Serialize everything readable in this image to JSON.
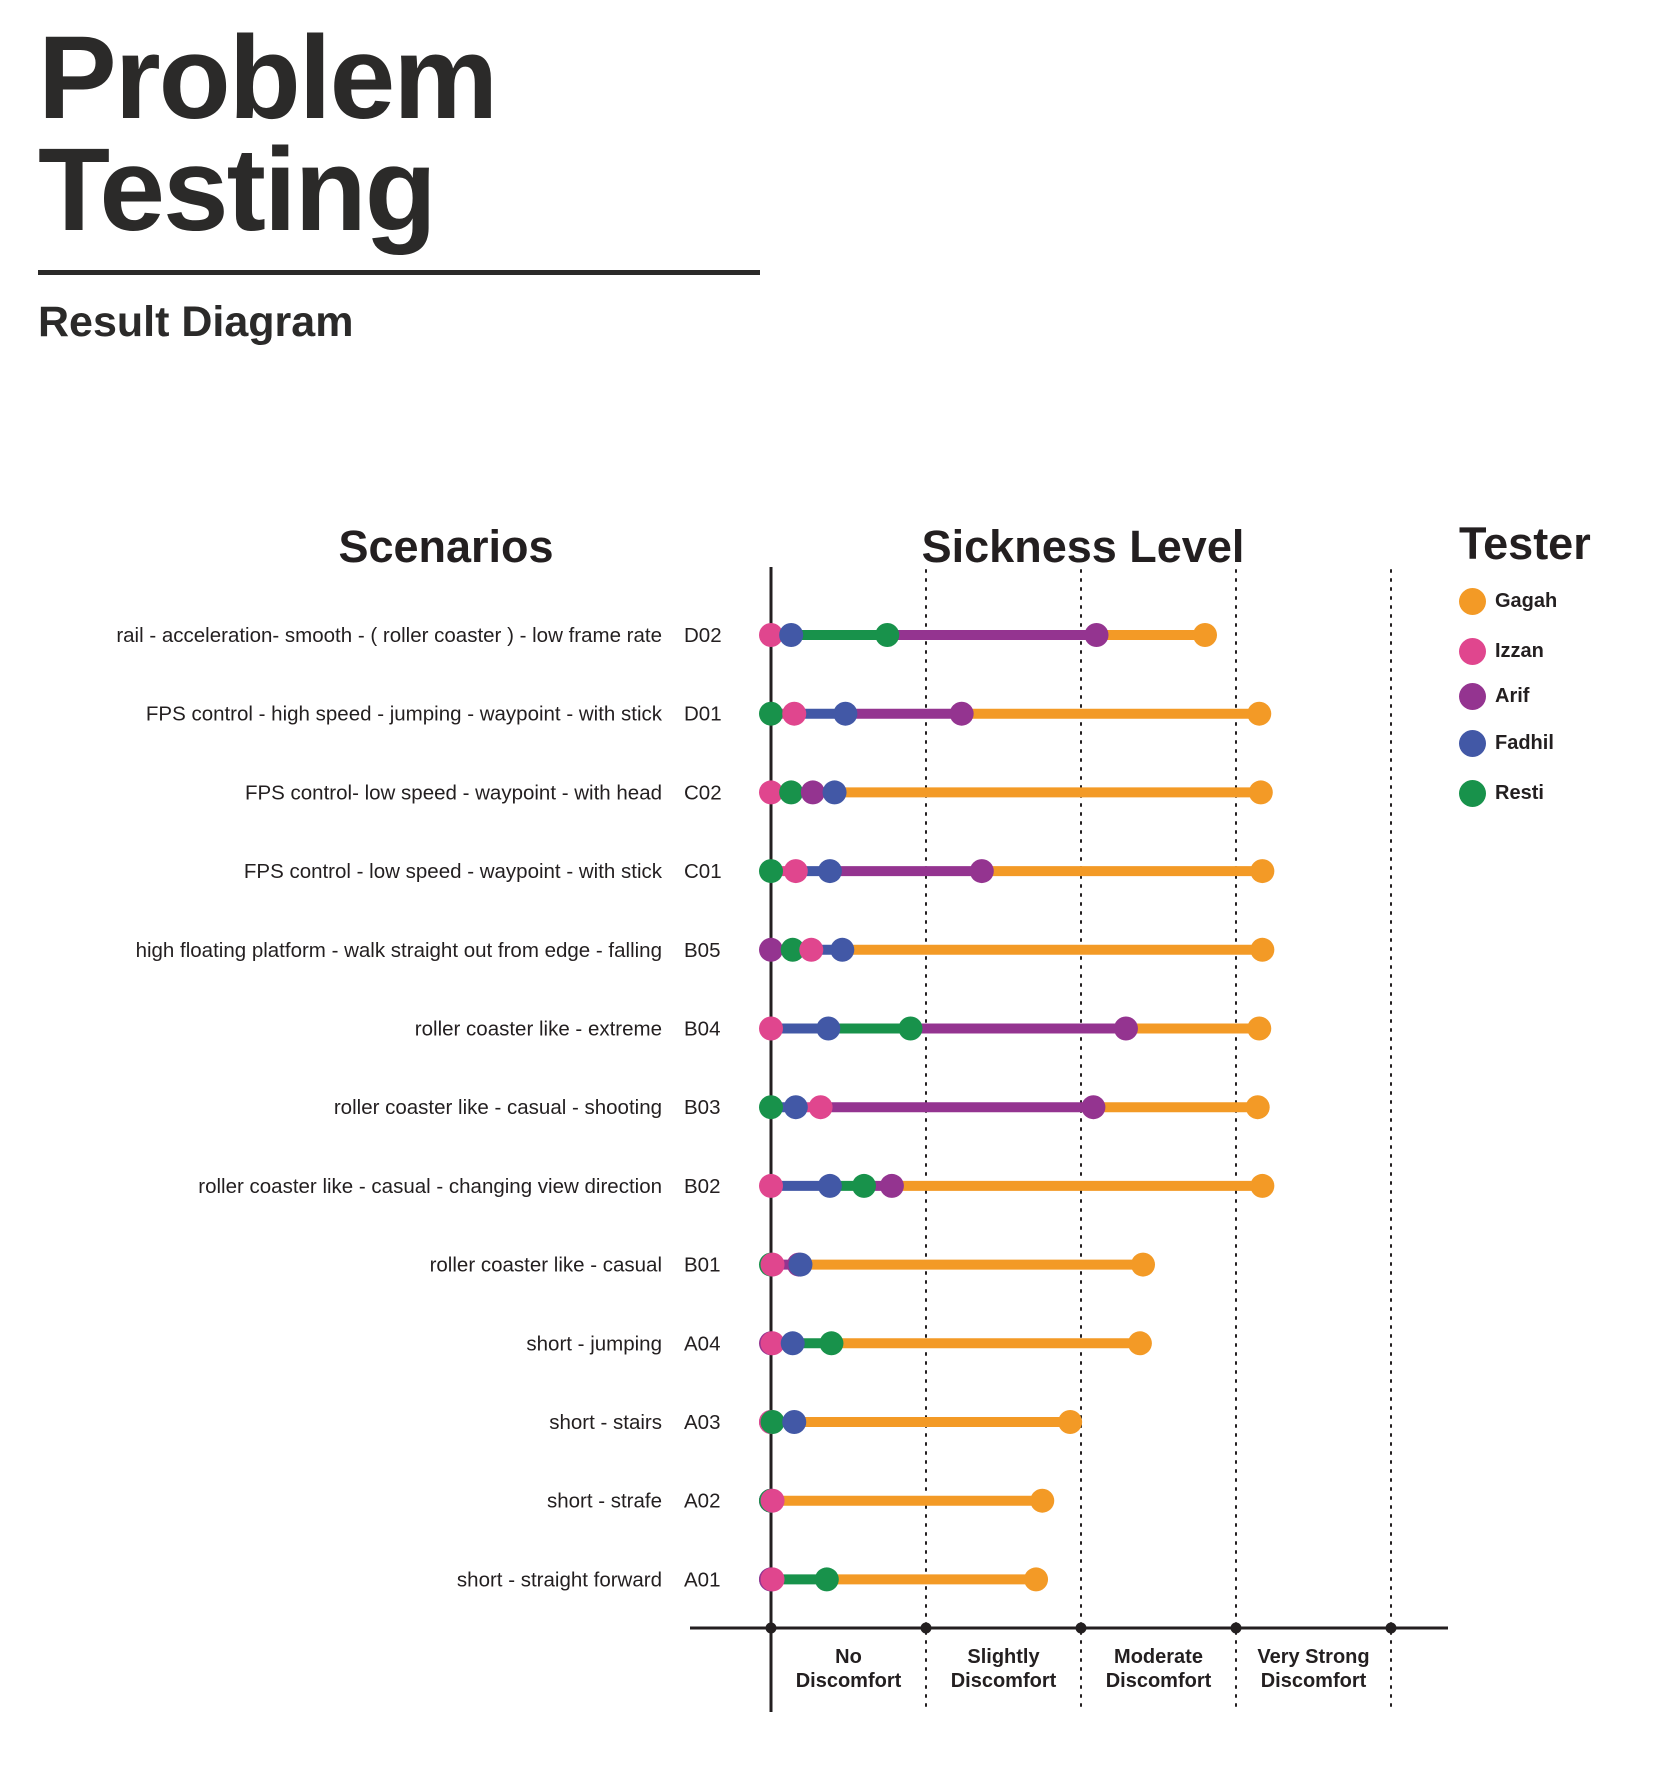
{
  "page": {
    "title_line1": "Problem",
    "title_line2": "Testing",
    "subtitle": "Result Diagram"
  },
  "colors": {
    "Gagah": "#f39a26",
    "Izzan": "#e0468e",
    "Arif": "#943490",
    "Fadhil": "#4258a6",
    "Resti": "#18924b",
    "axis": "#231f20",
    "text": "#231f20"
  },
  "legend": {
    "title": "Tester",
    "items": [
      {
        "name": "Gagah",
        "color": "#f39a26"
      },
      {
        "name": "Izzan",
        "color": "#e0468e"
      },
      {
        "name": "Arif",
        "color": "#943490"
      },
      {
        "name": "Fadhil",
        "color": "#4258a6"
      },
      {
        "name": "Resti",
        "color": "#18924b"
      }
    ]
  },
  "chart_data": {
    "type": "scatter",
    "subtype": "dot-range per scenario",
    "column_headers": {
      "scenarios": "Scenarios",
      "sickness": "Sickness Level"
    },
    "x_categories": [
      "No Discomfort",
      "Slightly Discomfort",
      "Moderate Discomfort",
      "Very Strong Discomfort"
    ],
    "x_category_lines": [
      [
        "No",
        "Discomfort"
      ],
      [
        "Slightly",
        "Discomfort"
      ],
      [
        "Moderate",
        "Discomfort"
      ],
      [
        "Very Strong",
        "Discomfort"
      ]
    ],
    "xlim": [
      0,
      4
    ],
    "gridlines_at": [
      1,
      2,
      3,
      4
    ],
    "series_names": [
      "Gagah",
      "Izzan",
      "Arif",
      "Fadhil",
      "Resti"
    ],
    "scenarios": [
      {
        "code": "D02",
        "label": "rail - acceleration- smooth - ( roller coaster ) - low frame rate",
        "values": {
          "Izzan": 0.0,
          "Fadhil": 0.13,
          "Resti": 0.75,
          "Arif": 2.1,
          "Gagah": 2.8
        }
      },
      {
        "code": "D01",
        "label": "FPS control - high speed - jumping - waypoint - with stick",
        "values": {
          "Resti": 0.0,
          "Izzan": 0.15,
          "Fadhil": 0.48,
          "Arif": 1.23,
          "Gagah": 3.15
        }
      },
      {
        "code": "C02",
        "label": "FPS control- low speed - waypoint - with head",
        "values": {
          "Izzan": 0.0,
          "Resti": 0.13,
          "Arif": 0.27,
          "Fadhil": 0.41,
          "Gagah": 3.16
        }
      },
      {
        "code": "C01",
        "label": "FPS control - low speed - waypoint - with stick",
        "values": {
          "Resti": 0.0,
          "Izzan": 0.16,
          "Fadhil": 0.38,
          "Arif": 1.36,
          "Gagah": 3.17
        }
      },
      {
        "code": "B05",
        "label": "high floating platform - walk straight out from edge - falling",
        "values": {
          "Arif": 0.0,
          "Resti": 0.14,
          "Izzan": 0.26,
          "Fadhil": 0.46,
          "Gagah": 3.17
        }
      },
      {
        "code": "B04",
        "label": "roller coaster like - extreme",
        "values": {
          "Izzan": 0.0,
          "Fadhil": 0.37,
          "Resti": 0.9,
          "Arif": 2.29,
          "Gagah": 3.15
        }
      },
      {
        "code": "B03",
        "label": "roller coaster like - casual - shooting",
        "values": {
          "Resti": 0.0,
          "Fadhil": 0.16,
          "Izzan": 0.32,
          "Arif": 2.08,
          "Gagah": 3.14
        }
      },
      {
        "code": "B02",
        "label": "roller coaster like - casual - changing view direction",
        "values": {
          "Izzan": 0.0,
          "Fadhil": 0.38,
          "Resti": 0.6,
          "Arif": 0.78,
          "Gagah": 3.17
        }
      },
      {
        "code": "B01",
        "label": "roller coaster like - casual",
        "values": {
          "Resti": 0.0,
          "Izzan": 0.01,
          "Arif": 0.18,
          "Fadhil": 0.19,
          "Gagah": 2.4
        }
      },
      {
        "code": "A04",
        "label": "short -  jumping",
        "values": {
          "Arif": 0.0,
          "Izzan": 0.01,
          "Fadhil": 0.14,
          "Resti": 0.39,
          "Gagah": 2.38
        }
      },
      {
        "code": "A03",
        "label": "short - stairs",
        "values": {
          "Arif": 0.0,
          "Resti": 0.01,
          "Izzan": 0.0,
          "Fadhil": 0.15,
          "Gagah": 1.93
        }
      },
      {
        "code": "A02",
        "label": "short - strafe",
        "values": {
          "Fadhil": 0.0,
          "Arif": 0.0,
          "Izzan": 0.01,
          "Resti": 0.0,
          "Gagah": 1.75
        }
      },
      {
        "code": "A01",
        "label": "short - straight forward",
        "values": {
          "Fadhil": 0.0,
          "Arif": 0.0,
          "Izzan": 0.01,
          "Resti": 0.36,
          "Gagah": 1.71
        }
      }
    ]
  }
}
